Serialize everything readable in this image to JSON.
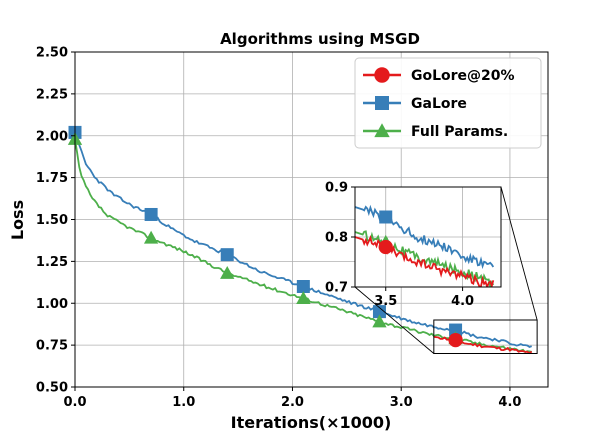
{
  "chart_data": {
    "type": "line",
    "title": "Algorithms using MSGD",
    "xlabel": "Iterations(×1000)",
    "ylabel": "Loss",
    "xlim": [
      0,
      4.35
    ],
    "ylim": [
      0.5,
      2.5
    ],
    "xticks": [
      0.0,
      1.0,
      2.0,
      3.0,
      4.0
    ],
    "yticks": [
      0.5,
      0.75,
      1.0,
      1.25,
      1.5,
      1.75,
      2.0,
      2.25,
      2.5
    ],
    "xtick_labels": [
      "0.0",
      "1.0",
      "2.0",
      "3.0",
      "4.0"
    ],
    "ytick_labels": [
      "0.50",
      "0.75",
      "1.00",
      "1.25",
      "1.50",
      "1.75",
      "2.00",
      "2.25",
      "2.50"
    ],
    "grid": true,
    "legend_position": "top-right",
    "series": [
      {
        "name": "GoLore@20%",
        "color": "#e41a1c",
        "marker": "circle",
        "start_x": 3.3,
        "x": [
          3.3,
          3.4,
          3.5,
          3.6,
          3.7,
          3.8,
          3.9,
          4.0,
          4.1,
          4.2
        ],
        "y": [
          0.8,
          0.79,
          0.78,
          0.76,
          0.75,
          0.74,
          0.73,
          0.725,
          0.71,
          0.705
        ],
        "markers_x": [
          3.5
        ],
        "markers_y": [
          0.78
        ]
      },
      {
        "name": "GaLore",
        "color": "#377eb8",
        "marker": "square",
        "start_x": 0.0,
        "x": [
          0.0,
          0.1,
          0.2,
          0.35,
          0.5,
          0.7,
          0.9,
          1.1,
          1.4,
          1.7,
          2.1,
          2.5,
          2.8,
          3.1,
          3.3,
          3.5,
          3.7,
          3.9,
          4.0,
          4.1,
          4.2
        ],
        "y": [
          2.02,
          1.83,
          1.74,
          1.65,
          1.59,
          1.53,
          1.44,
          1.37,
          1.29,
          1.19,
          1.1,
          1.01,
          0.95,
          0.89,
          0.86,
          0.84,
          0.8,
          0.78,
          0.76,
          0.75,
          0.74
        ],
        "markers_x": [
          0.0,
          0.7,
          1.4,
          2.1,
          2.8,
          3.5
        ],
        "markers_y": [
          2.02,
          1.53,
          1.29,
          1.1,
          0.95,
          0.84
        ]
      },
      {
        "name": "Full Params.",
        "color": "#4daf4a",
        "marker": "triangle",
        "start_x": 0.0,
        "x": [
          0.0,
          0.05,
          0.15,
          0.3,
          0.5,
          0.7,
          1.0,
          1.4,
          1.8,
          2.1,
          2.5,
          2.8,
          3.1,
          3.3,
          3.5,
          3.7,
          3.9,
          4.0,
          4.1,
          4.2
        ],
        "y": [
          1.98,
          1.77,
          1.63,
          1.52,
          1.45,
          1.39,
          1.31,
          1.18,
          1.09,
          1.03,
          0.95,
          0.89,
          0.84,
          0.81,
          0.79,
          0.76,
          0.74,
          0.73,
          0.72,
          0.705
        ],
        "markers_x": [
          0.0,
          0.7,
          1.4,
          2.1,
          2.8,
          3.5
        ],
        "markers_y": [
          1.98,
          1.39,
          1.18,
          1.03,
          0.89,
          0.79
        ]
      }
    ],
    "inset": {
      "xlim": [
        3.3,
        4.25
      ],
      "ylim": [
        0.7,
        0.9
      ],
      "xticks": [
        3.5,
        4.0
      ],
      "yticks": [
        0.7,
        0.8,
        0.9
      ],
      "xtick_labels": [
        "3.5",
        "4.0"
      ],
      "ytick_labels": [
        "0.7",
        "0.8",
        "0.9"
      ]
    }
  }
}
